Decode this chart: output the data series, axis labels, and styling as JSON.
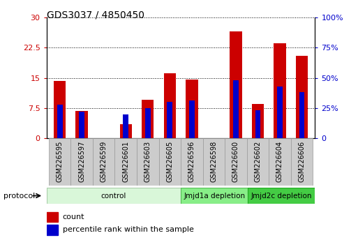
{
  "title": "GDS3037 / 4850450",
  "samples": [
    "GSM226595",
    "GSM226597",
    "GSM226599",
    "GSM226601",
    "GSM226603",
    "GSM226605",
    "GSM226596",
    "GSM226598",
    "GSM226600",
    "GSM226602",
    "GSM226604",
    "GSM226606"
  ],
  "count_values": [
    14.2,
    6.8,
    0.0,
    3.5,
    9.5,
    16.2,
    14.5,
    0.0,
    26.5,
    8.5,
    23.5,
    20.5
  ],
  "percentile_values": [
    28.0,
    22.0,
    0.0,
    20.0,
    25.0,
    30.0,
    31.0,
    0.0,
    48.0,
    23.0,
    43.0,
    38.0
  ],
  "red_color": "#cc0000",
  "blue_color": "#0000cc",
  "ylim_left": [
    0,
    30
  ],
  "ylim_right": [
    0,
    100
  ],
  "yticks_left": [
    0,
    7.5,
    15,
    22.5,
    30
  ],
  "yticks_right": [
    0,
    25,
    50,
    75,
    100
  ],
  "ytick_labels_left": [
    "0",
    "7.5",
    "15",
    "22.5",
    "30"
  ],
  "ytick_labels_right": [
    "0",
    "25%",
    "50%",
    "75%",
    "100%"
  ],
  "groups": [
    {
      "label": "control",
      "start": 0,
      "end": 6,
      "color": "#d9f7d9",
      "edge_color": "#aaccaa"
    },
    {
      "label": "Jmjd1a depletion",
      "start": 6,
      "end": 9,
      "color": "#88ee88",
      "edge_color": "#55bb55"
    },
    {
      "label": "Jmjd2c depletion",
      "start": 9,
      "end": 12,
      "color": "#44cc44",
      "edge_color": "#22aa22"
    }
  ],
  "bar_width": 0.55,
  "red_bar_width": 0.55,
  "blue_bar_width": 0.25,
  "tick_label_rotation": 90,
  "protocol_label": "protocol",
  "legend_count": "count",
  "legend_percentile": "percentile rank within the sample",
  "bg_color": "#ffffff",
  "tick_box_color": "#cccccc"
}
